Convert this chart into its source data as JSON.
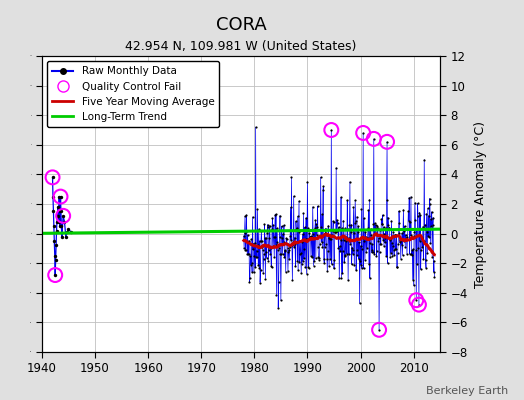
{
  "title": "CORA",
  "subtitle": "42.954 N, 109.981 W (United States)",
  "ylabel": "Temperature Anomaly (°C)",
  "watermark": "Berkeley Earth",
  "ylim": [
    -8,
    12
  ],
  "yticks": [
    -8,
    -6,
    -4,
    -2,
    0,
    2,
    4,
    6,
    8,
    10,
    12
  ],
  "xlim": [
    1940,
    2015
  ],
  "xticks": [
    1940,
    1950,
    1960,
    1970,
    1980,
    1990,
    2000,
    2010
  ],
  "fig_bg_color": "#e0e0e0",
  "plot_bg_color": "#ffffff",
  "grid_color": "#c0c0c0",
  "moving_avg_color": "#cc0000",
  "raw_color": "#0000ee",
  "dot_color": "#000000",
  "qc_color": "#ff00ff",
  "trend_color": "#00cc00",
  "title_fontsize": 13,
  "subtitle_fontsize": 9,
  "tick_fontsize": 8.5,
  "ylabel_fontsize": 9
}
